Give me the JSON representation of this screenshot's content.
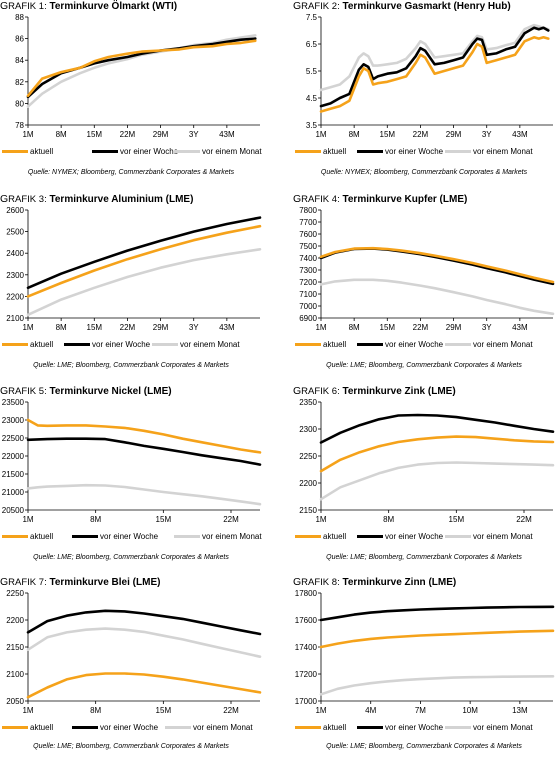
{
  "colors": {
    "aktuell": "#f5a21a",
    "woche": "#000000",
    "monat": "#d3d3d3"
  },
  "charts": [
    {
      "prefix": "Grafik 1:",
      "title": "Terminkurve Ölmarkt (WTI)",
      "source": "Quelle: NYMEX; Bloomberg, Commerzbank Corporates & Markets",
      "legend": [
        "aktuell",
        "vor einer Woche",
        "vor einem Monat"
      ],
      "chart_data": {
        "type": "line",
        "x": [
          1,
          4,
          8,
          12,
          15,
          18,
          22,
          25,
          29,
          33,
          36,
          40,
          43,
          46,
          49
        ],
        "xticks": [
          1,
          8,
          15,
          22,
          29,
          36,
          43
        ],
        "xticklabels": [
          "1M",
          "8M",
          "15M",
          "22M",
          "29M",
          "3Y",
          "43M"
        ],
        "xlim": [
          1,
          50
        ],
        "ylim": [
          78,
          88
        ],
        "yticks": [
          78,
          80,
          82,
          84,
          86,
          88
        ],
        "series": [
          {
            "name": "aktuell",
            "values": [
              80.7,
              82.3,
              82.9,
              83.3,
              83.9,
              84.3,
              84.6,
              84.8,
              84.9,
              85.0,
              85.2,
              85.3,
              85.5,
              85.6,
              85.8
            ]
          },
          {
            "name": "vor einer Woche",
            "values": [
              80.6,
              81.8,
              82.8,
              83.3,
              83.7,
              84.0,
              84.3,
              84.6,
              84.9,
              85.1,
              85.3,
              85.5,
              85.7,
              85.9,
              86.0
            ]
          },
          {
            "name": "vor einem Monat",
            "values": [
              79.7,
              80.9,
              82.0,
              82.8,
              83.3,
              83.7,
              84.1,
              84.5,
              84.8,
              85.1,
              85.4,
              85.6,
              85.9,
              86.1,
              86.3
            ]
          }
        ]
      }
    },
    {
      "prefix": "Grafik 2:",
      "title": "Terminkurve Gasmarkt (Henry Hub)",
      "source": "Quelle: NYMEX; Bloomberg, Commerzbank Corporates & Markets",
      "legend": [
        "aktuell",
        "vor einer Woche",
        "vor einem Monat"
      ],
      "chart_data": {
        "type": "line",
        "x": [
          1,
          3,
          5,
          7,
          9,
          10,
          11,
          12,
          13,
          15,
          17,
          19,
          21,
          22,
          23,
          25,
          27,
          29,
          31,
          33,
          34,
          35,
          36,
          38,
          40,
          42,
          44,
          46,
          47,
          48,
          49
        ],
        "xticks": [
          1,
          8,
          15,
          22,
          29,
          36,
          43
        ],
        "xticklabels": [
          "1M",
          "8M",
          "15M",
          "22M",
          "29M",
          "3Y",
          "43M"
        ],
        "xlim": [
          1,
          50
        ],
        "ylim": [
          3.5,
          7.5
        ],
        "yticks": [
          3.5,
          4.5,
          5.5,
          6.5,
          7.5
        ],
        "series": [
          {
            "name": "aktuell",
            "values": [
              4.0,
              4.1,
              4.2,
              4.4,
              5.3,
              5.6,
              5.5,
              5.0,
              5.05,
              5.1,
              5.2,
              5.3,
              5.8,
              6.1,
              6.0,
              5.4,
              5.5,
              5.6,
              5.7,
              6.2,
              6.5,
              6.4,
              5.8,
              5.9,
              6.0,
              6.1,
              6.6,
              6.75,
              6.7,
              6.75,
              6.7
            ]
          },
          {
            "name": "vor einer Woche",
            "values": [
              4.2,
              4.3,
              4.5,
              4.65,
              5.55,
              5.75,
              5.65,
              5.2,
              5.3,
              5.4,
              5.45,
              5.6,
              6.05,
              6.35,
              6.25,
              5.75,
              5.8,
              5.9,
              6.0,
              6.5,
              6.7,
              6.65,
              6.1,
              6.15,
              6.3,
              6.4,
              6.9,
              7.1,
              7.05,
              7.1,
              7.0
            ]
          },
          {
            "name": "vor einem Monat",
            "values": [
              4.8,
              4.9,
              5.0,
              5.3,
              6.0,
              6.15,
              6.05,
              5.7,
              5.7,
              5.75,
              5.8,
              5.95,
              6.35,
              6.6,
              6.5,
              6.0,
              6.05,
              6.1,
              6.15,
              6.6,
              6.8,
              6.75,
              6.3,
              6.35,
              6.45,
              6.55,
              7.05,
              7.2,
              7.15,
              7.1,
              7.05
            ]
          }
        ]
      }
    },
    {
      "prefix": "Grafik 3:",
      "title": "Terminkurve Aluminium (LME)",
      "source": "Quelle: LME; Bloomberg, Commerzbank Corporates & Markets",
      "legend": [
        "aktuell",
        "vor einer Woche",
        "vor einem Monat"
      ],
      "chart_data": {
        "type": "line",
        "x": [
          1,
          8,
          15,
          22,
          29,
          36,
          43,
          50
        ],
        "xticks": [
          1,
          8,
          15,
          22,
          29,
          36,
          43
        ],
        "xticklabels": [
          "1M",
          "8M",
          "15M",
          "22M",
          "29M",
          "3Y",
          "43M"
        ],
        "xlim": [
          1,
          50
        ],
        "ylim": [
          2100,
          2600
        ],
        "yticks": [
          2100,
          2200,
          2300,
          2400,
          2500,
          2600
        ],
        "series": [
          {
            "name": "aktuell",
            "values": [
              2200,
              2262,
              2320,
              2372,
              2418,
              2460,
              2495,
              2525
            ]
          },
          {
            "name": "vor einer Woche",
            "values": [
              2240,
              2305,
              2360,
              2412,
              2458,
              2500,
              2535,
              2565
            ]
          },
          {
            "name": "vor einem Monat",
            "values": [
              2115,
              2185,
              2240,
              2290,
              2333,
              2368,
              2395,
              2418
            ]
          }
        ]
      }
    },
    {
      "prefix": "Grafik 4:",
      "title": "Terminkurve Kupfer (LME)",
      "source": "Quelle: LME; Bloomberg, Commerzbank Corporates & Markets",
      "legend": [
        "aktuell",
        "vor einer Woche",
        "vor einem Monat"
      ],
      "chart_data": {
        "type": "line",
        "x": [
          1,
          4,
          8,
          12,
          15,
          18,
          22,
          25,
          29,
          33,
          36,
          40,
          43,
          46,
          50
        ],
        "xticks": [
          1,
          8,
          15,
          22,
          29,
          36,
          43
        ],
        "xticklabels": [
          "1M",
          "8M",
          "15M",
          "22M",
          "29M",
          "3Y",
          "43M"
        ],
        "xlim": [
          1,
          50
        ],
        "ylim": [
          6900,
          7800
        ],
        "yticks": [
          6900,
          7000,
          7100,
          7200,
          7300,
          7400,
          7500,
          7600,
          7700,
          7800
        ],
        "series": [
          {
            "name": "aktuell",
            "values": [
              7410,
              7450,
              7478,
              7482,
              7475,
              7462,
              7440,
              7420,
              7390,
              7358,
              7330,
              7295,
              7265,
              7235,
              7200
            ]
          },
          {
            "name": "vor einer Woche",
            "values": [
              7400,
              7445,
              7475,
              7478,
              7470,
              7455,
              7432,
              7410,
              7378,
              7345,
              7316,
              7280,
              7250,
              7220,
              7185
            ]
          },
          {
            "name": "vor einem Monat",
            "values": [
              7180,
              7205,
              7218,
              7218,
              7210,
              7195,
              7170,
              7148,
              7115,
              7080,
              7050,
              7015,
              6985,
              6960,
              6935
            ]
          }
        ]
      }
    },
    {
      "prefix": "Grafik 5:",
      "title": "Terminkurve Nickel (LME)",
      "source": "Quelle: LME; Bloomberg, Commerzbank Corporates & Markets",
      "legend": [
        "aktuell",
        "vor einer Woche",
        "vor einem Monat"
      ],
      "chart_data": {
        "type": "line",
        "x": [
          1,
          2,
          3,
          5,
          7,
          9,
          11,
          13,
          15,
          17,
          19,
          21,
          23,
          25
        ],
        "xticks": [
          1,
          8,
          15,
          22
        ],
        "xticklabels": [
          "1M",
          "8M",
          "15M",
          "22M"
        ],
        "xlim": [
          1,
          25
        ],
        "ylim": [
          20500,
          23500
        ],
        "yticks": [
          20500,
          21000,
          21500,
          22000,
          22500,
          23000,
          23500
        ],
        "series": [
          {
            "name": "aktuell",
            "values": [
              23000,
              22850,
              22840,
              22850,
              22850,
              22820,
              22780,
              22700,
              22600,
              22480,
              22380,
              22280,
              22180,
              22100
            ]
          },
          {
            "name": "vor einer Woche",
            "values": [
              22450,
              22460,
              22470,
              22480,
              22480,
              22470,
              22380,
              22280,
              22200,
              22110,
              22020,
              21940,
              21860,
              21760
            ]
          },
          {
            "name": "vor einem Monat",
            "values": [
              21100,
              21130,
              21150,
              21170,
              21190,
              21180,
              21140,
              21070,
              21000,
              20940,
              20880,
              20810,
              20740,
              20660
            ]
          }
        ]
      }
    },
    {
      "prefix": "Grafik 6:",
      "title": "Terminkurve Zink (LME)",
      "source": "Quelle: LME; Bloomberg, Commerzbank Corporates & Markets",
      "legend": [
        "aktuell",
        "vor einer Woche",
        "vor einem Monat"
      ],
      "chart_data": {
        "type": "line",
        "x": [
          1,
          3,
          5,
          7,
          9,
          11,
          13,
          15,
          17,
          19,
          21,
          23,
          25
        ],
        "xticks": [
          1,
          8,
          15,
          22
        ],
        "xticklabels": [
          "1M",
          "8M",
          "15M",
          "22M"
        ],
        "xlim": [
          1,
          25
        ],
        "ylim": [
          2150,
          2350
        ],
        "yticks": [
          2150,
          2200,
          2250,
          2300,
          2350
        ],
        "series": [
          {
            "name": "aktuell",
            "values": [
              2222,
              2243,
              2257,
              2268,
              2276,
              2281,
              2284,
              2286,
              2285,
              2282,
              2279,
              2277,
              2276
            ]
          },
          {
            "name": "vor einer Woche",
            "values": [
              2275,
              2293,
              2307,
              2318,
              2325,
              2326,
              2325,
              2322,
              2317,
              2312,
              2306,
              2300,
              2295
            ]
          },
          {
            "name": "vor einem Monat",
            "values": [
              2170,
              2192,
              2205,
              2218,
              2228,
              2234,
              2237,
              2238,
              2237,
              2236,
              2235,
              2234,
              2233
            ]
          }
        ]
      }
    },
    {
      "prefix": "Grafik 7:",
      "title": "Terminkurve Blei (LME)",
      "source": "Quelle: LME; Bloomberg, Commerzbank Corporates & Markets",
      "legend": [
        "aktuell",
        "vor einer Woche",
        "vor einem Monat"
      ],
      "chart_data": {
        "type": "line",
        "x": [
          1,
          3,
          5,
          7,
          9,
          11,
          13,
          15,
          17,
          19,
          21,
          23,
          25
        ],
        "xticks": [
          1,
          8,
          15,
          22
        ],
        "xticklabels": [
          "1M",
          "8M",
          "15M",
          "22M"
        ],
        "xlim": [
          1,
          25
        ],
        "ylim": [
          2050,
          2250
        ],
        "yticks": [
          2050,
          2100,
          2150,
          2200,
          2250
        ],
        "series": [
          {
            "name": "aktuell",
            "values": [
              2057,
              2075,
              2090,
              2098,
              2101,
              2101,
              2099,
              2095,
              2090,
              2084,
              2078,
              2072,
              2066
            ]
          },
          {
            "name": "vor einer Woche",
            "values": [
              2177,
              2198,
              2208,
              2214,
              2217,
              2216,
              2212,
              2207,
              2202,
              2195,
              2188,
              2181,
              2174
            ]
          },
          {
            "name": "vor einem Monat",
            "values": [
              2145,
              2168,
              2177,
              2182,
              2184,
              2182,
              2178,
              2171,
              2164,
              2156,
              2148,
              2140,
              2132
            ]
          }
        ]
      }
    },
    {
      "prefix": "Grafik 8:",
      "title": "Terminkurve Zinn (LME)",
      "source": "Quelle: LME; Bloomberg, Commerzbank Corporates & Markets",
      "legend": [
        "aktuell",
        "vor einer Woche",
        "vor einem Monat"
      ],
      "chart_data": {
        "type": "line",
        "x": [
          1,
          2,
          3,
          4,
          5,
          6,
          7,
          8,
          9,
          10,
          11,
          12,
          13,
          14,
          15
        ],
        "xticks": [
          1,
          4,
          7,
          10,
          13
        ],
        "xticklabels": [
          "1M",
          "4M",
          "7M",
          "10M",
          "13M"
        ],
        "xlim": [
          1,
          15
        ],
        "ylim": [
          17000,
          17800
        ],
        "yticks": [
          17000,
          17200,
          17400,
          17600,
          17800
        ],
        "series": [
          {
            "name": "aktuell",
            "values": [
              17400,
              17425,
              17445,
              17460,
              17470,
              17478,
              17485,
              17490,
              17495,
              17500,
              17505,
              17510,
              17514,
              17517,
              17520
            ]
          },
          {
            "name": "vor einer Woche",
            "values": [
              17600,
              17620,
              17640,
              17655,
              17665,
              17672,
              17678,
              17682,
              17686,
              17689,
              17692,
              17694,
              17696,
              17697,
              17698
            ]
          },
          {
            "name": "vor einem Monat",
            "values": [
              17050,
              17090,
              17115,
              17132,
              17145,
              17155,
              17162,
              17168,
              17173,
              17176,
              17178,
              17180,
              17181,
              17182,
              17183
            ]
          }
        ]
      }
    }
  ]
}
